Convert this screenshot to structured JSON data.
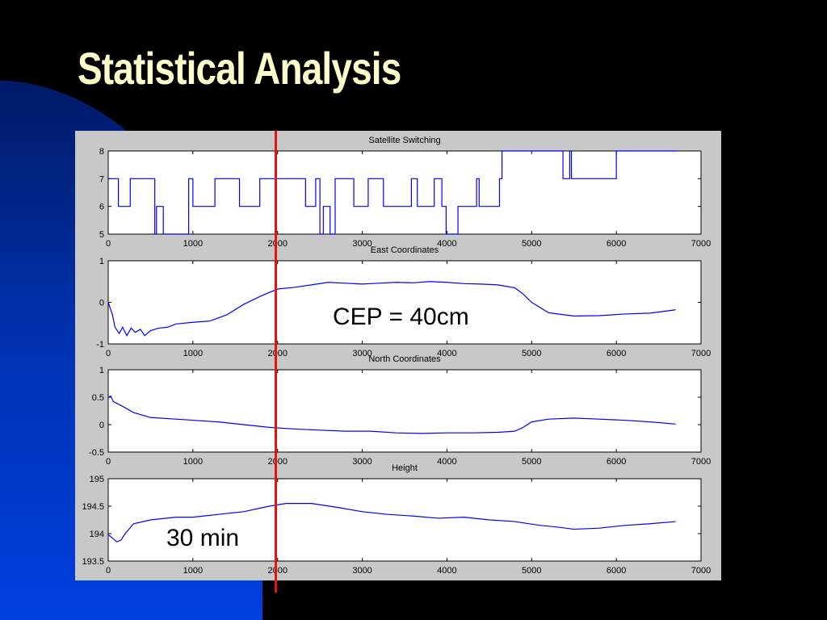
{
  "slide": {
    "title": "Statistical Analysis",
    "annotation_cep": "CEP = 40cm",
    "annotation_time": "30 min"
  },
  "colors": {
    "background_dark": "#000000",
    "background_blue": "#0033cc",
    "title": "#ffffcc",
    "figure_background": "#c8c8c8",
    "series": "#0000ff",
    "marker_line": "#e81010"
  },
  "chart_data": [
    {
      "type": "line",
      "title": "Satellite Switching",
      "xlim": [
        0,
        7000
      ],
      "ylim": [
        5,
        8
      ],
      "xticks": [
        "0",
        "1000",
        "2000",
        "3000",
        "4000",
        "5000",
        "6000",
        "7000"
      ],
      "yticks": [
        "5",
        "6",
        "7",
        "8"
      ],
      "step": true,
      "x": [
        0,
        120,
        260,
        550,
        570,
        650,
        680,
        950,
        1000,
        1030,
        1260,
        1550,
        1790,
        2000,
        2330,
        2450,
        2500,
        2540,
        2620,
        2680,
        2900,
        3070,
        3250,
        3580,
        3650,
        3850,
        3940,
        3990,
        4130,
        4350,
        4380,
        4620,
        4650,
        5250,
        5370,
        5450,
        5470,
        6000,
        6010,
        6720
      ],
      "values": [
        7,
        6,
        7,
        5,
        6,
        5,
        5,
        7,
        6,
        6,
        7,
        6,
        7,
        7,
        6,
        7,
        5,
        6,
        5,
        7,
        6,
        7,
        6,
        7,
        6,
        7,
        6,
        5,
        6,
        7,
        6,
        7,
        8,
        8,
        7,
        8,
        7,
        8,
        8,
        8
      ]
    },
    {
      "type": "line",
      "title": "East Coordinates",
      "xlim": [
        0,
        7000
      ],
      "ylim": [
        -1,
        1
      ],
      "xticks": [
        "0",
        "1000",
        "2000",
        "3000",
        "4000",
        "5000",
        "6000",
        "7000"
      ],
      "yticks": [
        "-1",
        "0",
        "1"
      ],
      "x": [
        0,
        50,
        80,
        130,
        170,
        220,
        270,
        320,
        380,
        430,
        500,
        600,
        700,
        800,
        1000,
        1200,
        1400,
        1600,
        1800,
        2000,
        2200,
        2400,
        2600,
        2800,
        3000,
        3200,
        3400,
        3600,
        3800,
        4000,
        4200,
        4400,
        4600,
        4800,
        4900,
        5000,
        5200,
        5500,
        5800,
        6100,
        6400,
        6700
      ],
      "values": [
        0.0,
        -0.3,
        -0.6,
        -0.75,
        -0.6,
        -0.8,
        -0.62,
        -0.72,
        -0.65,
        -0.8,
        -0.68,
        -0.62,
        -0.6,
        -0.52,
        -0.48,
        -0.45,
        -0.3,
        -0.05,
        0.15,
        0.32,
        0.36,
        0.42,
        0.48,
        0.46,
        0.44,
        0.46,
        0.48,
        0.47,
        0.5,
        0.48,
        0.45,
        0.44,
        0.42,
        0.35,
        0.2,
        0.0,
        -0.25,
        -0.33,
        -0.32,
        -0.28,
        -0.26,
        -0.18
      ]
    },
    {
      "type": "line",
      "title": "North Coordinates",
      "xlim": [
        0,
        7000
      ],
      "ylim": [
        -0.5,
        1
      ],
      "xticks": [
        "0",
        "1000",
        "2000",
        "3000",
        "4000",
        "5000",
        "6000",
        "7000"
      ],
      "yticks": [
        "-0.5",
        "0",
        "0.5",
        "1"
      ],
      "x": [
        0,
        30,
        60,
        150,
        300,
        500,
        800,
        1000,
        1300,
        1600,
        1900,
        2200,
        2500,
        2800,
        3100,
        3400,
        3700,
        4000,
        4300,
        4600,
        4800,
        4900,
        5000,
        5200,
        5500,
        5800,
        6100,
        6400,
        6700
      ],
      "values": [
        0.5,
        0.52,
        0.42,
        0.35,
        0.22,
        0.13,
        0.1,
        0.08,
        0.05,
        0.0,
        -0.05,
        -0.08,
        -0.1,
        -0.12,
        -0.12,
        -0.15,
        -0.16,
        -0.15,
        -0.15,
        -0.14,
        -0.12,
        -0.05,
        0.05,
        0.1,
        0.12,
        0.1,
        0.08,
        0.05,
        0.01
      ]
    },
    {
      "type": "line",
      "title": "Height",
      "xlim": [
        0,
        7000
      ],
      "ylim": [
        193.5,
        195
      ],
      "xticks": [
        "0",
        "1000",
        "2000",
        "3000",
        "4000",
        "5000",
        "6000",
        "7000"
      ],
      "yticks": [
        "193.5",
        "194",
        "194.5",
        "195"
      ],
      "x": [
        0,
        50,
        100,
        150,
        200,
        300,
        500,
        800,
        1000,
        1300,
        1600,
        1900,
        2100,
        2400,
        2700,
        3000,
        3300,
        3600,
        3900,
        4200,
        4500,
        4800,
        5100,
        5300,
        5500,
        5800,
        6100,
        6400,
        6700
      ],
      "values": [
        193.98,
        193.92,
        193.85,
        193.88,
        194.0,
        194.18,
        194.25,
        194.3,
        194.3,
        194.35,
        194.4,
        194.5,
        194.55,
        194.55,
        194.48,
        194.4,
        194.35,
        194.32,
        194.28,
        194.3,
        194.25,
        194.22,
        194.15,
        194.12,
        194.08,
        194.1,
        194.15,
        194.18,
        194.22
      ]
    }
  ]
}
